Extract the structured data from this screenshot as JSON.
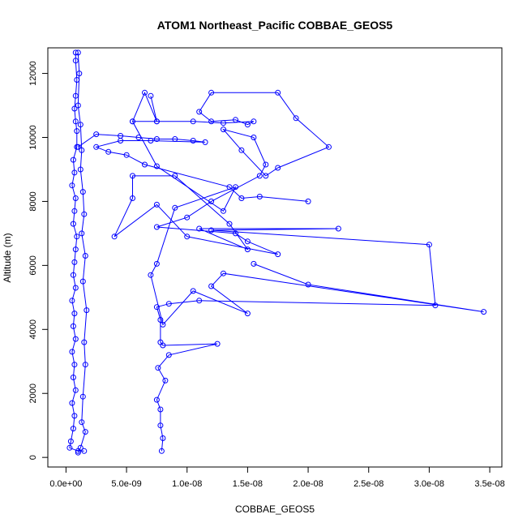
{
  "chart_data": {
    "type": "scatter",
    "title": "ATOM1 Northeast_Pacific COBBAE_GEOS5",
    "xlabel": "COBBAE_GEOS5",
    "ylabel": "Altitude (m)",
    "xlim": [
      -1.5e-09,
      3.6e-08
    ],
    "ylim": [
      -300,
      12800
    ],
    "x_ticks": [
      0,
      5e-09,
      1e-08,
      1.5e-08,
      2e-08,
      2.5e-08,
      3e-08,
      3.5e-08
    ],
    "x_tick_labels": [
      "0.0e+00",
      "5.0e-09",
      "1.0e-08",
      "1.5e-08",
      "2.0e-08",
      "2.5e-08",
      "3.0e-08",
      "3.5e-08"
    ],
    "y_ticks": [
      0,
      2000,
      4000,
      6000,
      8000,
      10000,
      12000
    ],
    "y_tick_labels": [
      "0",
      "2000",
      "4000",
      "6000",
      "8000",
      "10000",
      "12000"
    ],
    "grid": false,
    "color": "#0000ff",
    "series": [
      {
        "points": [
          [
            8e-10,
            12650
          ],
          [
            8e-10,
            12400
          ],
          [
            9e-10,
            11800
          ],
          [
            8e-10,
            11300
          ],
          [
            7e-10,
            10900
          ],
          [
            8e-10,
            10500
          ],
          [
            9e-10,
            10200
          ],
          [
            9e-10,
            9700
          ],
          [
            6e-10,
            9300
          ],
          [
            7e-10,
            8900
          ],
          [
            5e-10,
            8500
          ],
          [
            8e-10,
            8100
          ],
          [
            7e-10,
            7700
          ],
          [
            6e-10,
            7300
          ],
          [
            9e-10,
            6900
          ],
          [
            8e-10,
            6500
          ],
          [
            7e-10,
            6100
          ],
          [
            6e-10,
            5700
          ],
          [
            8e-10,
            5300
          ],
          [
            5e-10,
            4900
          ],
          [
            7e-10,
            4500
          ],
          [
            6e-10,
            4100
          ],
          [
            8e-10,
            3700
          ],
          [
            5e-10,
            3300
          ],
          [
            7e-10,
            2900
          ],
          [
            6e-10,
            2500
          ],
          [
            8e-10,
            2100
          ],
          [
            5e-10,
            1700
          ],
          [
            7e-10,
            1300
          ],
          [
            6e-10,
            900
          ],
          [
            4e-10,
            500
          ],
          [
            3e-10,
            300
          ],
          [
            1e-09,
            200
          ],
          [
            1.5e-09,
            200
          ]
        ]
      },
      {
        "points": [
          [
            1e-09,
            12650
          ],
          [
            1.1e-09,
            12000
          ],
          [
            1e-09,
            11000
          ],
          [
            1.2e-09,
            10400
          ],
          [
            1.3e-09,
            9600
          ],
          [
            1.2e-09,
            9000
          ],
          [
            1.4e-09,
            8300
          ],
          [
            1.5e-09,
            7600
          ],
          [
            1.3e-09,
            7000
          ],
          [
            1.6e-09,
            6300
          ],
          [
            1.4e-09,
            5500
          ],
          [
            1.7e-09,
            4600
          ],
          [
            1.5e-09,
            3600
          ],
          [
            1.6e-09,
            2900
          ],
          [
            1.4e-09,
            1900
          ],
          [
            1.3e-09,
            1100
          ],
          [
            1.6e-09,
            800
          ],
          [
            1.2e-09,
            300
          ],
          [
            1e-09,
            150
          ]
        ]
      },
      {
        "points": [
          [
            1e-09,
            9700
          ],
          [
            2.5e-09,
            10100
          ],
          [
            4.5e-09,
            10050
          ],
          [
            6e-09,
            10000
          ],
          [
            7.5e-09,
            9950
          ],
          [
            9e-09,
            9950
          ],
          [
            1.05e-08,
            9900
          ],
          [
            1.15e-08,
            9850
          ],
          [
            7e-09,
            9900
          ],
          [
            4.5e-09,
            9900
          ],
          [
            2.5e-09,
            9700
          ],
          [
            3.5e-09,
            9550
          ],
          [
            5e-09,
            9450
          ],
          [
            6.5e-09,
            9150
          ],
          [
            1.35e-08,
            8450
          ],
          [
            1.45e-08,
            8100
          ],
          [
            1.6e-08,
            8150
          ],
          [
            2e-08,
            8000
          ]
        ]
      },
      {
        "points": [
          [
            5.5e-09,
            10500
          ],
          [
            7.5e-09,
            10500
          ],
          [
            1.05e-08,
            10500
          ],
          [
            1.3e-08,
            10450
          ],
          [
            1.55e-08,
            10500
          ],
          [
            1.5e-08,
            10400
          ],
          [
            1.4e-08,
            10550
          ],
          [
            1.2e-08,
            10500
          ],
          [
            1.1e-08,
            10800
          ],
          [
            1.2e-08,
            11400
          ],
          [
            1.75e-08,
            11400
          ],
          [
            1.9e-08,
            10600
          ],
          [
            2.17e-08,
            9700
          ],
          [
            1.75e-08,
            9050
          ],
          [
            1.65e-08,
            8800
          ],
          [
            1.45e-08,
            9600
          ],
          [
            1.3e-08,
            10250
          ],
          [
            1.55e-08,
            10000
          ],
          [
            1.65e-08,
            9150
          ],
          [
            1.6e-08,
            8800
          ],
          [
            1.2e-08,
            8000
          ],
          [
            1e-08,
            7500
          ],
          [
            7.5e-09,
            7200
          ],
          [
            1.4e-08,
            7000
          ],
          [
            1.5e-08,
            6750
          ],
          [
            1.75e-08,
            6350
          ],
          [
            1e-08,
            6900
          ],
          [
            7.5e-09,
            7900
          ],
          [
            4e-09,
            6900
          ],
          [
            5.5e-09,
            8100
          ],
          [
            5.5e-09,
            8800
          ],
          [
            9e-09,
            8800
          ],
          [
            1.35e-08,
            7300
          ],
          [
            1.5e-08,
            6500
          ],
          [
            1.1e-08,
            7150
          ],
          [
            2.25e-08,
            7150
          ],
          [
            1.2e-08,
            7100
          ],
          [
            3e-08,
            6650
          ],
          [
            3.05e-08,
            4750
          ],
          [
            1.1e-08,
            4900
          ],
          [
            8.5e-09,
            4800
          ],
          [
            7.5e-09,
            4700
          ],
          [
            7.8e-09,
            4300
          ],
          [
            7.8e-09,
            3600
          ],
          [
            8e-09,
            3500
          ],
          [
            1.25e-08,
            3550
          ],
          [
            8.5e-09,
            3200
          ],
          [
            7.6e-09,
            2800
          ],
          [
            8.2e-09,
            2400
          ],
          [
            7.5e-09,
            1800
          ],
          [
            7.8e-09,
            1500
          ],
          [
            7.8e-09,
            1000
          ],
          [
            8e-09,
            600
          ],
          [
            7.9e-09,
            200
          ]
        ]
      },
      {
        "points": [
          [
            7e-09,
            11300
          ],
          [
            7.5e-09,
            10500
          ],
          [
            6.5e-09,
            11400
          ],
          [
            5.5e-09,
            10500
          ],
          [
            7.5e-09,
            9100
          ],
          [
            1.3e-08,
            7700
          ],
          [
            1.4e-08,
            8450
          ],
          [
            9e-09,
            7800
          ],
          [
            7.5e-09,
            6050
          ],
          [
            7e-09,
            5700
          ],
          [
            8e-09,
            4150
          ],
          [
            1.05e-08,
            5200
          ],
          [
            1.5e-08,
            4500
          ],
          [
            1.2e-08,
            5350
          ],
          [
            1.3e-08,
            5750
          ],
          [
            3.45e-08,
            4550
          ],
          [
            2e-08,
            5400
          ],
          [
            1.55e-08,
            6050
          ]
        ]
      }
    ]
  }
}
